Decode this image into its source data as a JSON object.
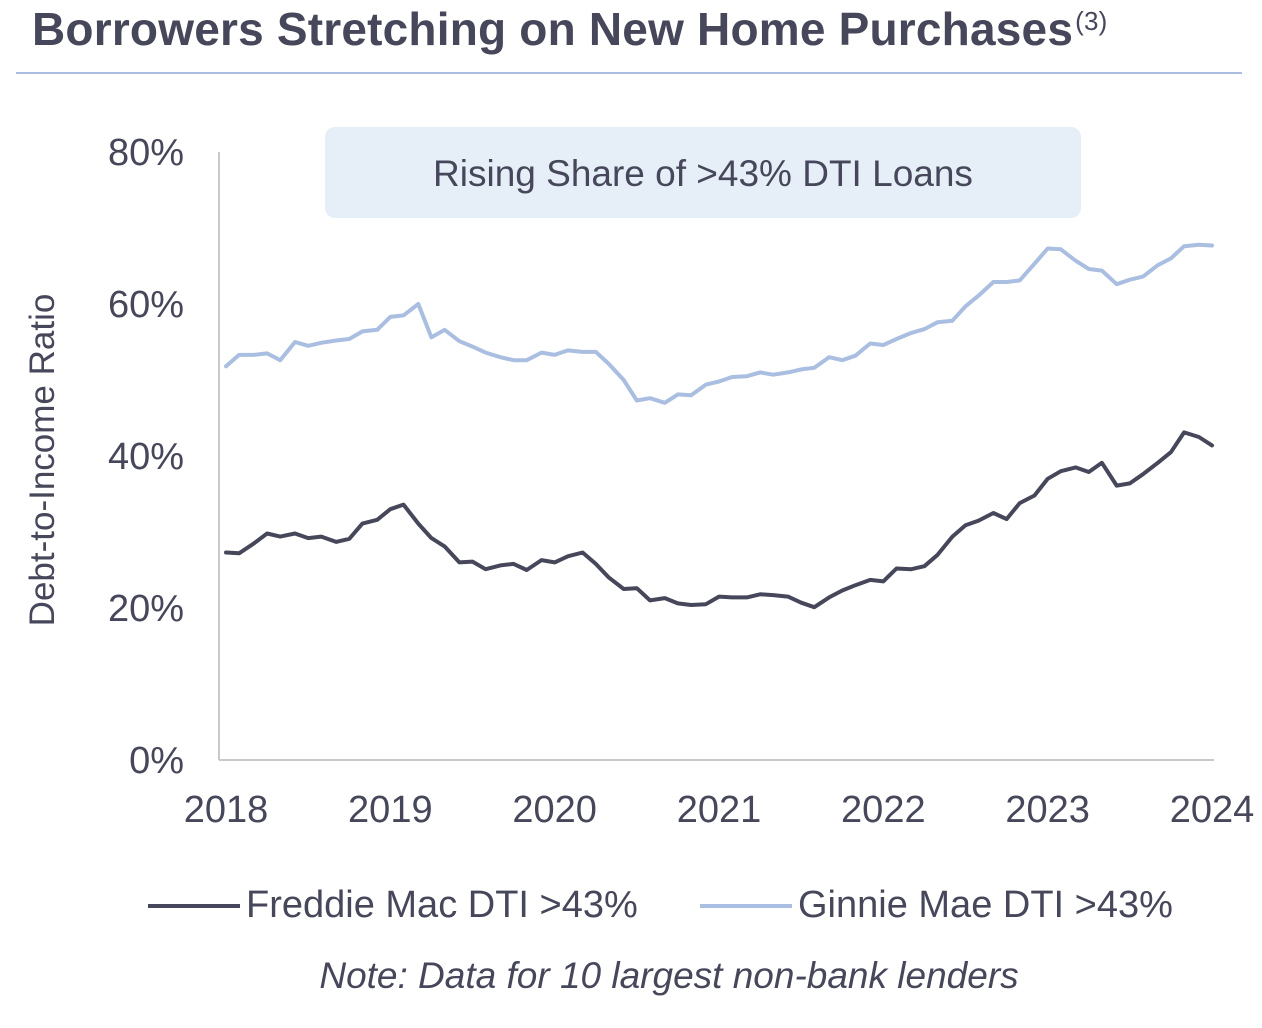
{
  "title": {
    "text": "Borrowers Stretching on New Home Purchases",
    "footnote_ref": "(3)"
  },
  "chart_data": {
    "type": "line",
    "ylabel": "Debt-to-Income Ratio",
    "ylim": [
      0,
      80
    ],
    "xlim": [
      2018,
      2024
    ],
    "y_ticks": [
      "0%",
      "20%",
      "40%",
      "60%",
      "80%"
    ],
    "y_tick_values": [
      0,
      20,
      40,
      60,
      80
    ],
    "x_ticks": [
      "2018",
      "2019",
      "2020",
      "2021",
      "2022",
      "2023",
      "2024"
    ],
    "x_tick_values": [
      2018,
      2019,
      2020,
      2021,
      2022,
      2023,
      2024
    ],
    "grid": false,
    "legend_position": "bottom",
    "annotation": "Rising Share of >43% DTI Loans",
    "series": [
      {
        "name": "Freddie Mac DTI >43%",
        "color": "#46475a",
        "x": [
          2018.0,
          2018.08,
          2018.17,
          2018.25,
          2018.33,
          2018.42,
          2018.5,
          2018.58,
          2018.67,
          2018.75,
          2018.83,
          2018.92,
          2019.0,
          2019.08,
          2019.17,
          2019.25,
          2019.33,
          2019.42,
          2019.5,
          2019.58,
          2019.67,
          2019.75,
          2019.83,
          2019.92,
          2020.0,
          2020.08,
          2020.17,
          2020.25,
          2020.33,
          2020.42,
          2020.5,
          2020.58,
          2020.67,
          2020.75,
          2020.83,
          2020.92,
          2021.0,
          2021.08,
          2021.17,
          2021.25,
          2021.33,
          2021.42,
          2021.5,
          2021.58,
          2021.67,
          2021.75,
          2021.83,
          2021.92,
          2022.0,
          2022.08,
          2022.17,
          2022.25,
          2022.33,
          2022.42,
          2022.5,
          2022.58,
          2022.67,
          2022.75,
          2022.83,
          2022.92,
          2023.0,
          2023.08,
          2023.17,
          2023.25,
          2023.33,
          2023.42,
          2023.5,
          2023.58,
          2023.67,
          2023.75,
          2023.83,
          2023.92,
          2024.0
        ],
        "y": [
          27.3,
          27.2,
          28.5,
          29.8,
          29.4,
          29.8,
          29.2,
          29.4,
          28.7,
          29.1,
          31.1,
          31.6,
          33.0,
          33.6,
          31.1,
          29.2,
          28.1,
          26.0,
          26.1,
          25.1,
          25.6,
          25.8,
          25.0,
          26.3,
          26.0,
          26.8,
          27.3,
          25.8,
          24.0,
          22.5,
          22.6,
          21.0,
          21.3,
          20.6,
          20.4,
          20.5,
          21.5,
          21.4,
          21.4,
          21.8,
          21.7,
          21.5,
          20.7,
          20.1,
          21.4,
          22.3,
          23.0,
          23.7,
          23.5,
          25.2,
          25.1,
          25.5,
          27.0,
          29.4,
          30.9,
          31.5,
          32.5,
          31.7,
          33.8,
          34.8,
          37.0,
          38.0,
          38.5,
          37.9,
          39.1,
          36.1,
          36.4,
          37.6,
          39.1,
          40.5,
          43.1,
          42.5,
          41.4
        ]
      },
      {
        "name": "Ginnie Mae DTI >43%",
        "color": "#a9bee0",
        "x": [
          2018.0,
          2018.08,
          2018.17,
          2018.25,
          2018.33,
          2018.42,
          2018.5,
          2018.58,
          2018.67,
          2018.75,
          2018.83,
          2018.92,
          2019.0,
          2019.08,
          2019.17,
          2019.25,
          2019.33,
          2019.42,
          2019.5,
          2019.58,
          2019.67,
          2019.75,
          2019.83,
          2019.92,
          2020.0,
          2020.08,
          2020.17,
          2020.25,
          2020.33,
          2020.42,
          2020.5,
          2020.58,
          2020.67,
          2020.75,
          2020.83,
          2020.92,
          2021.0,
          2021.08,
          2021.17,
          2021.25,
          2021.33,
          2021.42,
          2021.5,
          2021.58,
          2021.67,
          2021.75,
          2021.83,
          2021.92,
          2022.0,
          2022.08,
          2022.17,
          2022.25,
          2022.33,
          2022.42,
          2022.5,
          2022.58,
          2022.67,
          2022.75,
          2022.83,
          2022.92,
          2023.0,
          2023.08,
          2023.17,
          2023.25,
          2023.33,
          2023.42,
          2023.5,
          2023.58,
          2023.67,
          2023.75,
          2023.83,
          2023.92,
          2024.0
        ],
        "y": [
          51.8,
          53.3,
          53.3,
          53.5,
          52.6,
          55.0,
          54.5,
          54.9,
          55.2,
          55.4,
          56.4,
          56.6,
          58.3,
          58.5,
          60.0,
          55.6,
          56.6,
          55.1,
          54.4,
          53.6,
          53.0,
          52.6,
          52.6,
          53.6,
          53.3,
          53.9,
          53.7,
          53.7,
          52.1,
          50.0,
          47.3,
          47.6,
          47.0,
          48.1,
          48.0,
          49.4,
          49.8,
          50.4,
          50.5,
          51.0,
          50.7,
          51.0,
          51.4,
          51.6,
          53.0,
          52.6,
          53.2,
          54.8,
          54.6,
          55.4,
          56.2,
          56.7,
          57.6,
          57.8,
          59.7,
          61.1,
          62.9,
          62.9,
          63.1,
          65.3,
          67.3,
          67.2,
          65.7,
          64.6,
          64.4,
          62.6,
          63.2,
          63.6,
          65.1,
          66.0,
          67.6,
          67.8,
          67.7
        ]
      }
    ]
  },
  "legend": [
    {
      "label": "Freddie Mac DTI >43%",
      "color": "#46475a"
    },
    {
      "label": "Ginnie Mae DTI >43%",
      "color": "#a9bee0"
    }
  ],
  "note": "Note: Data for 10 largest non-bank lenders"
}
